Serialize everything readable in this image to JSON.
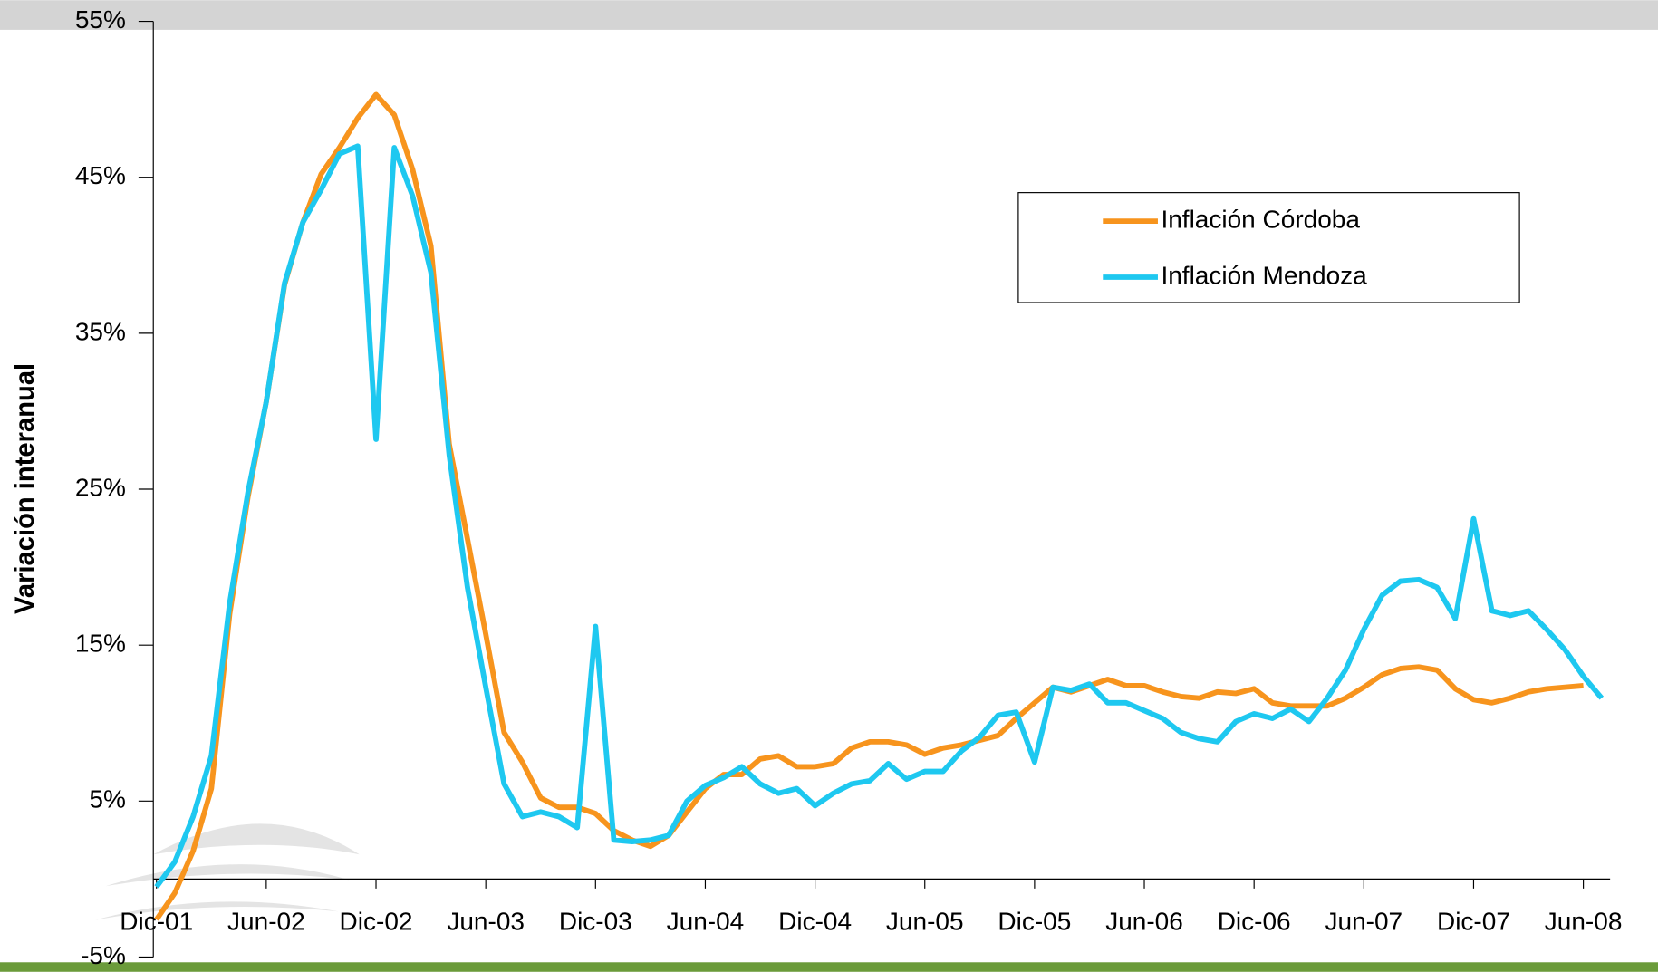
{
  "chart_data": {
    "type": "line",
    "y_label": "Variación interanual",
    "categories": [
      "Dic-01",
      null,
      null,
      null,
      null,
      null,
      "Jun-02",
      null,
      null,
      null,
      null,
      null,
      "Dic-02",
      null,
      null,
      null,
      null,
      null,
      "Jun-03",
      null,
      null,
      null,
      null,
      null,
      "Dic-03",
      null,
      null,
      null,
      null,
      null,
      "Jun-04",
      null,
      null,
      null,
      null,
      null,
      "Dic-04",
      null,
      null,
      null,
      null,
      null,
      "Jun-05",
      null,
      null,
      null,
      null,
      null,
      "Dic-05",
      null,
      null,
      null,
      null,
      null,
      "Jun-06",
      null,
      null,
      null,
      null,
      null,
      "Dic-06",
      null,
      null,
      null,
      null,
      null,
      "Jun-07",
      null,
      null,
      null,
      null,
      null,
      "Dic-07",
      null,
      null,
      null,
      null,
      null,
      "Jun-08",
      null
    ],
    "series": [
      {
        "name": "Inflación Córdoba",
        "color": "#f7941d",
        "values": [
          -2.6,
          -0.9,
          1.8,
          5.8,
          17.0,
          24.5,
          30.6,
          38.1,
          42.1,
          45.2,
          46.9,
          48.8,
          50.3,
          49.0,
          45.5,
          40.6,
          27.9,
          21.8,
          15.7,
          9.4,
          7.5,
          5.2,
          4.6,
          4.6,
          4.2,
          3.1,
          2.5,
          2.1,
          2.8,
          4.3,
          5.8,
          6.7,
          6.7,
          7.7,
          7.9,
          7.2,
          7.2,
          7.4,
          8.4,
          8.8,
          8.8,
          8.6,
          8.0,
          8.4,
          8.6,
          8.9,
          9.2,
          10.3,
          11.3,
          12.3,
          12.0,
          12.4,
          12.8,
          12.4,
          12.4,
          12.0,
          11.7,
          11.6,
          12.0,
          11.9,
          12.2,
          11.3,
          11.1,
          11.1,
          11.1,
          11.6,
          12.3,
          13.1,
          13.5,
          13.6,
          13.4,
          12.2,
          11.5,
          11.3,
          11.6,
          12.0,
          12.2,
          12.3,
          12.4,
          null
        ]
      },
      {
        "name": "Inflación Mendoza",
        "color": "#1ec8f0",
        "values": [
          -0.5,
          1.1,
          4.0,
          7.9,
          17.7,
          24.8,
          30.6,
          38.2,
          42.1,
          44.2,
          46.5,
          47.0,
          28.2,
          46.9,
          43.8,
          38.9,
          27.2,
          18.7,
          12.3,
          6.1,
          4.0,
          4.3,
          4.0,
          3.3,
          16.2,
          2.5,
          2.4,
          2.5,
          2.8,
          5.0,
          6.0,
          6.5,
          7.2,
          6.1,
          5.5,
          5.8,
          4.7,
          5.5,
          6.1,
          6.3,
          7.4,
          6.4,
          6.9,
          6.9,
          8.2,
          9.1,
          10.5,
          10.7,
          7.5,
          12.3,
          12.1,
          12.5,
          11.3,
          11.3,
          10.8,
          10.3,
          9.4,
          9.0,
          8.8,
          10.1,
          10.6,
          10.3,
          10.9,
          10.1,
          11.6,
          13.4,
          16.0,
          18.2,
          19.1,
          19.2,
          18.7,
          16.7,
          23.1,
          17.2,
          16.9,
          17.2,
          16.0,
          14.7,
          13.0,
          11.6
        ]
      }
    ],
    "ylim": [
      -5,
      55
    ],
    "yticks": [
      {
        "value": -5,
        "label": "-5%"
      },
      {
        "value": 5,
        "label": "5%"
      },
      {
        "value": 15,
        "label": "15%"
      },
      {
        "value": 25,
        "label": "25%"
      },
      {
        "value": 35,
        "label": "35%"
      },
      {
        "value": 45,
        "label": "45%"
      },
      {
        "value": 55,
        "label": "55%"
      }
    ],
    "grid": false,
    "legend": "upper right"
  }
}
